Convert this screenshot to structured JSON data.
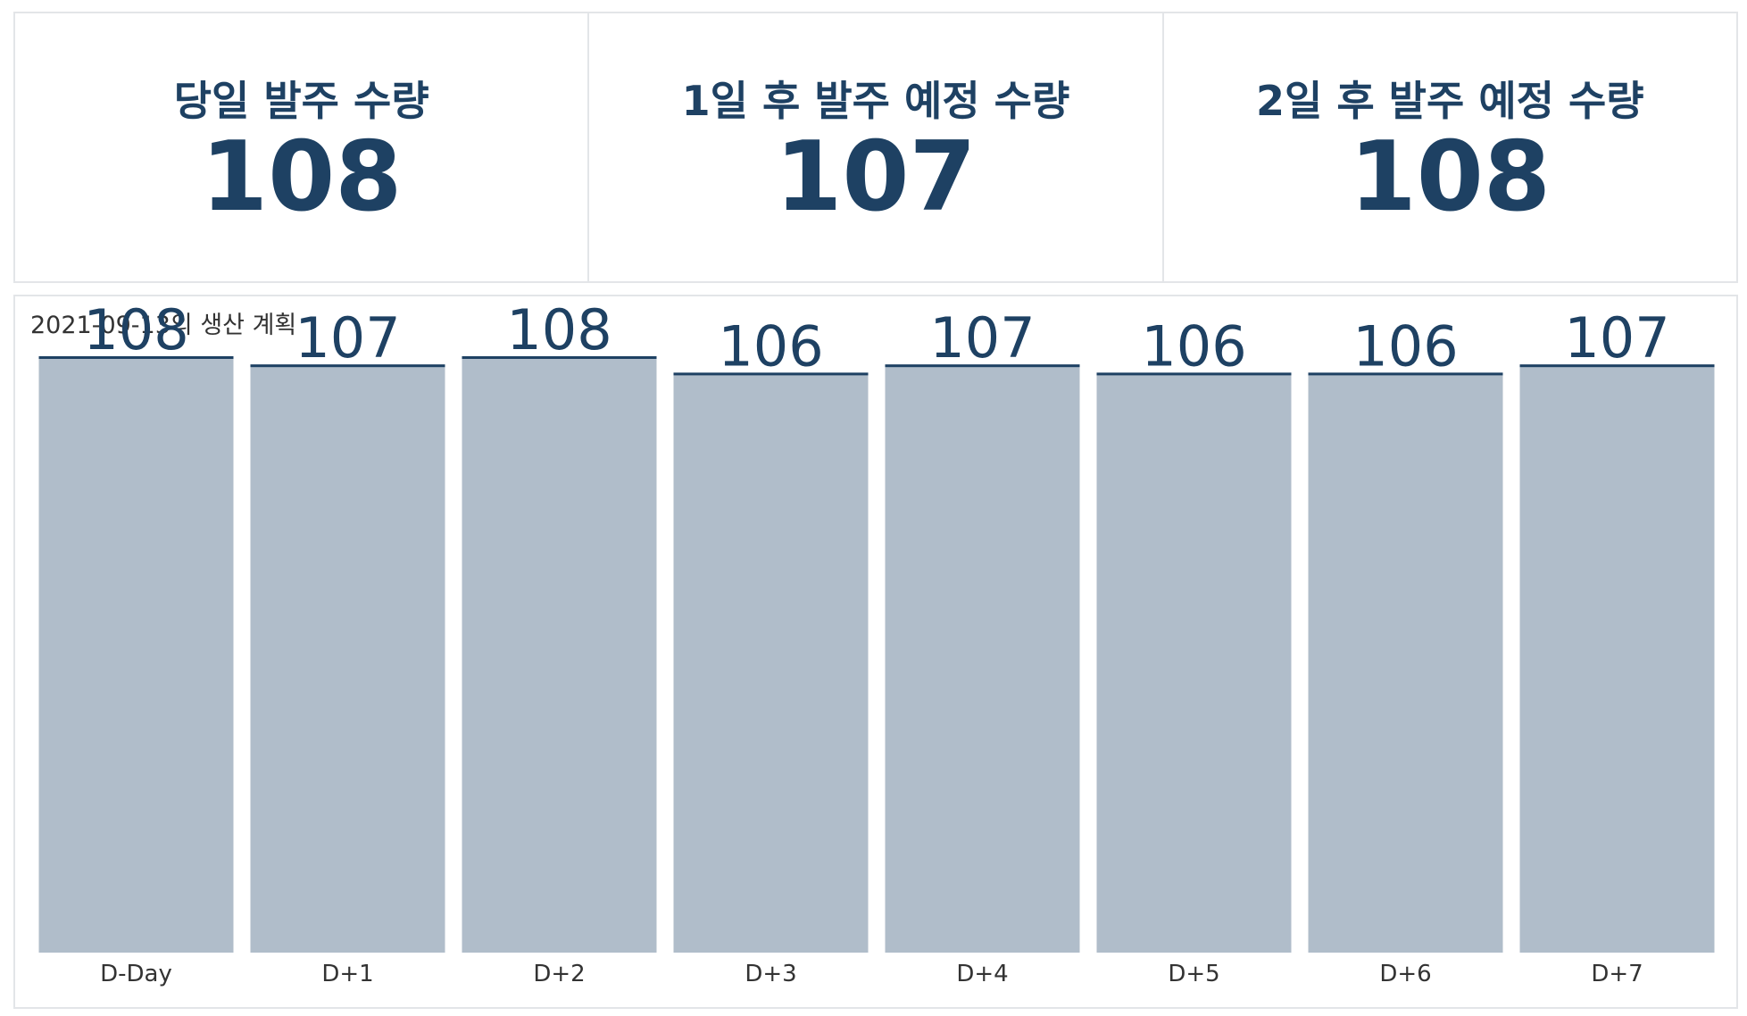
{
  "kpis": [
    {
      "label": "당일 발주 수량",
      "value": "108"
    },
    {
      "label": "1일 후 발주 예정 수량",
      "value": "107"
    },
    {
      "label": "2일 후 발주 예정 수량",
      "value": "108"
    }
  ],
  "chart_data": {
    "type": "bar",
    "title": "2021-09-13의 생산 계획",
    "categories": [
      "D-Day",
      "D+1",
      "D+2",
      "D+3",
      "D+4",
      "D+5",
      "D+6",
      "D+7"
    ],
    "values": [
      108,
      107,
      108,
      106,
      107,
      106,
      106,
      107
    ],
    "xlabel": "",
    "ylabel": "",
    "ylim": [
      0,
      108
    ],
    "grid": false,
    "colors": {
      "bar_fill": "#b0bdca",
      "bar_cap": "#1e4163",
      "value_text": "#1e4163",
      "axis_text": "#333333"
    }
  }
}
